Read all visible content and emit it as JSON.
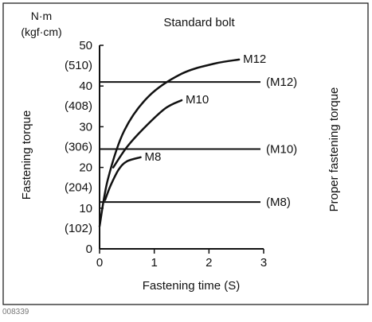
{
  "figure_id": "008339",
  "chart_data": {
    "type": "line",
    "title": "Standard bolt",
    "xlabel": "Fastening time (S)",
    "ylabel": "Fastening torque",
    "ylabel_right": "Proper fastening torque",
    "y_unit_top": "N·m",
    "y_unit_bottom": "(kgf·cm)",
    "xlim": [
      0,
      3
    ],
    "ylim": [
      0,
      50
    ],
    "x_ticks": [
      0,
      1,
      2,
      3
    ],
    "y_ticks": [
      {
        "value": 0,
        "label": "0",
        "sub": ""
      },
      {
        "value": 10,
        "label": "10",
        "sub": "(102)"
      },
      {
        "value": 20,
        "label": "20",
        "sub": "(204)"
      },
      {
        "value": 30,
        "label": "30",
        "sub": "(306)"
      },
      {
        "value": 40,
        "label": "40",
        "sub": "(408)"
      },
      {
        "value": 50,
        "label": "50",
        "sub": "(510)"
      }
    ],
    "series": [
      {
        "name": "M8",
        "x": [
          0.1,
          0.2,
          0.35,
          0.5,
          0.75
        ],
        "y": [
          12.0,
          15.5,
          19.5,
          21.5,
          22.5
        ]
      },
      {
        "name": "M10",
        "x": [
          0.25,
          0.5,
          0.8,
          1.2,
          1.5
        ],
        "y": [
          20.0,
          25.0,
          29.5,
          34.5,
          36.5
        ]
      },
      {
        "name": "M12",
        "x": [
          0.0,
          0.15,
          0.45,
          0.9,
          1.5,
          2.1,
          2.55
        ],
        "y": [
          5.5,
          17.0,
          29.0,
          37.5,
          43.0,
          45.5,
          46.5
        ]
      }
    ],
    "reference_lines": [
      {
        "label": "(M12)",
        "y": 41.0
      },
      {
        "label": "(M10)",
        "y": 24.5
      },
      {
        "label": "(M8)",
        "y": 11.5
      }
    ]
  }
}
